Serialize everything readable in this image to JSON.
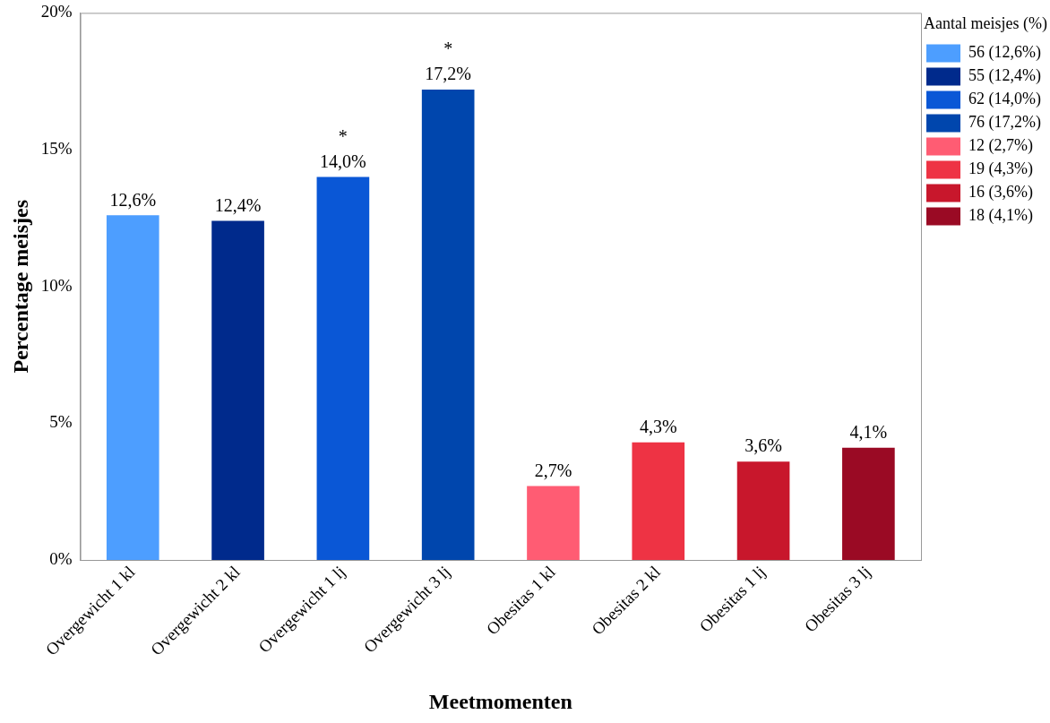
{
  "chart_data": {
    "type": "bar",
    "xlabel": "Meetmomenten",
    "ylabel": "Percentage meisjes",
    "legend_title": "Aantal meisjes (%)",
    "legend": "top right",
    "stacked": true,
    "categories": [
      "Overgewicht 1 kl",
      "Overgewicht 2 kl",
      "Overgewicht 1 lj",
      "Overgewicht 3 lj",
      "Obesitas 1 kl",
      "Obesitas 2 kl",
      "Obesitas 1 lj",
      "Obesitas 3 lj"
    ],
    "ylim": [
      0,
      20
    ],
    "yticks": [
      {
        "value": 0,
        "label": "0%"
      },
      {
        "value": 5,
        "label": "5%"
      },
      {
        "value": 10,
        "label": "10%"
      },
      {
        "value": 15,
        "label": "15%"
      },
      {
        "value": 20,
        "label": "20%"
      }
    ],
    "series": [
      {
        "name": "56 (12,6%)",
        "color": "#4d9eff",
        "values": [
          12.6,
          null,
          null,
          null,
          null,
          null,
          null,
          null
        ],
        "value_labels": [
          "12,6%",
          null,
          null,
          null,
          null,
          null,
          null,
          null
        ]
      },
      {
        "name": "55 (12,4%)",
        "color": "#002a8c",
        "values": [
          null,
          12.4,
          null,
          null,
          null,
          null,
          null,
          null
        ],
        "value_labels": [
          null,
          "12,4%",
          null,
          null,
          null,
          null,
          null,
          null
        ]
      },
      {
        "name": "62 (14,0%)",
        "color": "#0a57d6",
        "values": [
          null,
          null,
          14.0,
          null,
          null,
          null,
          null,
          null
        ],
        "value_labels": [
          null,
          null,
          "14,0%",
          null,
          null,
          null,
          null,
          null
        ]
      },
      {
        "name": "76 (17,2%)",
        "color": "#0046ad",
        "values": [
          null,
          null,
          null,
          17.2,
          null,
          null,
          null,
          null
        ],
        "value_labels": [
          null,
          null,
          null,
          "17,2%",
          null,
          null,
          null,
          null
        ]
      },
      {
        "name": "12 (2,7%)",
        "color": "#ff5c73",
        "values": [
          null,
          null,
          null,
          null,
          2.7,
          null,
          null,
          null
        ],
        "value_labels": [
          null,
          null,
          null,
          null,
          "2,7%",
          null,
          null,
          null
        ]
      },
      {
        "name": "19 (4,3%)",
        "color": "#ee3344",
        "values": [
          null,
          null,
          null,
          null,
          null,
          4.3,
          null,
          null
        ],
        "value_labels": [
          null,
          null,
          null,
          null,
          null,
          "4,3%",
          null,
          null
        ]
      },
      {
        "name": "16 (3,6%)",
        "color": "#c8172c",
        "values": [
          null,
          null,
          null,
          null,
          null,
          null,
          3.6,
          null
        ],
        "value_labels": [
          null,
          null,
          null,
          null,
          null,
          null,
          "3,6%",
          null
        ]
      },
      {
        "name": "18 (4,1%)",
        "color": "#9a0a24",
        "values": [
          null,
          null,
          null,
          null,
          null,
          null,
          null,
          4.1
        ],
        "value_labels": [
          null,
          null,
          null,
          null,
          null,
          null,
          null,
          "4,1%"
        ]
      }
    ],
    "annotations": [
      {
        "text": "*",
        "x": "Overgewicht 1 lj",
        "y": 14.0
      },
      {
        "text": "*",
        "x": "Overgewicht 3 lj",
        "y": 17.2
      }
    ]
  }
}
